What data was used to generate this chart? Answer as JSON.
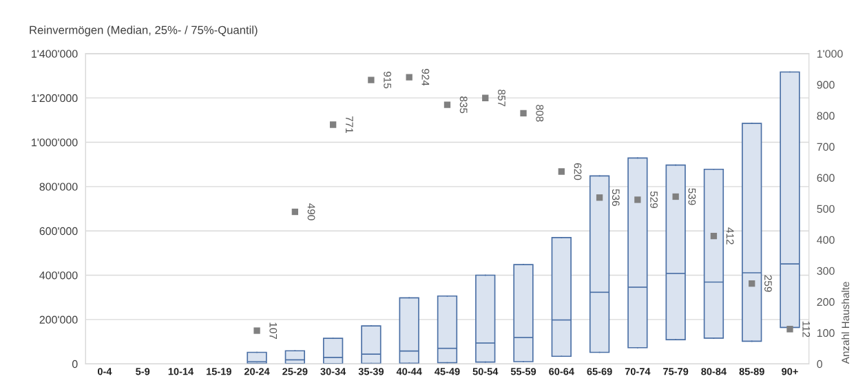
{
  "chart_data": {
    "type": "box",
    "title": "Reinvermögen (Median, 25%- / 75%-Quantil)",
    "y2label": "Anzahl Haushalte",
    "categories": [
      "0-4",
      "5-9",
      "10-14",
      "15-19",
      "20-24",
      "25-29",
      "30-34",
      "35-39",
      "40-44",
      "45-49",
      "50-54",
      "55-59",
      "60-64",
      "65-69",
      "70-74",
      "75-79",
      "80-84",
      "85-89",
      "90+"
    ],
    "color": "#dae3f0",
    "boxes": [
      null,
      null,
      null,
      null,
      {
        "low": 2000,
        "q1": 2000,
        "median": 10000,
        "q3": 52000,
        "high": 52000
      },
      {
        "low": 1000,
        "q1": 1000,
        "median": 18000,
        "q3": 59000,
        "high": 59000
      },
      {
        "low": 1000,
        "q1": 1000,
        "median": 29000,
        "q3": 115000,
        "high": 115000
      },
      {
        "low": 2000,
        "q1": 2000,
        "median": 44000,
        "q3": 171000,
        "high": 171000
      },
      {
        "low": 3000,
        "q1": 3000,
        "median": 58000,
        "q3": 298000,
        "high": 298000
      },
      {
        "low": 5000,
        "q1": 5000,
        "median": 70000,
        "q3": 306000,
        "high": 306000
      },
      {
        "low": 8000,
        "q1": 8000,
        "median": 94000,
        "q3": 400000,
        "high": 400000
      },
      {
        "low": 10000,
        "q1": 10000,
        "median": 119000,
        "q3": 448000,
        "high": 448000
      },
      {
        "low": 34000,
        "q1": 34000,
        "median": 198000,
        "q3": 570000,
        "high": 570000
      },
      {
        "low": 52000,
        "q1": 52000,
        "median": 323000,
        "q3": 848000,
        "high": 848000
      },
      {
        "low": 73000,
        "q1": 73000,
        "median": 346000,
        "q3": 929000,
        "high": 929000
      },
      {
        "low": 109000,
        "q1": 109000,
        "median": 408000,
        "q3": 897000,
        "high": 897000
      },
      {
        "low": 116000,
        "q1": 116000,
        "median": 369000,
        "q3": 878000,
        "high": 878000
      },
      {
        "low": 102000,
        "q1": 102000,
        "median": 411000,
        "q3": 1085000,
        "high": 1085000
      },
      {
        "low": 164000,
        "q1": 164000,
        "median": 451000,
        "q3": 1317000,
        "high": 1317000
      }
    ],
    "series": [
      {
        "type": "scatter",
        "axis": "y2",
        "color": "#808080",
        "marker": "square",
        "values": [
          null,
          null,
          null,
          null,
          107,
          490,
          771,
          915,
          924,
          835,
          857,
          808,
          620,
          536,
          529,
          539,
          412,
          259,
          112
        ],
        "value_labels": [
          null,
          null,
          null,
          null,
          "107",
          "490",
          "771",
          "915",
          "924",
          "835",
          "857",
          "808",
          "620",
          "536",
          "529",
          "539",
          "412",
          "259",
          "112"
        ]
      }
    ],
    "ylim": [
      0,
      1400000
    ],
    "yticks": [
      0,
      {
        "value": 200000,
        "label": "200'000"
      },
      {
        "value": 400000,
        "label": "400'000"
      },
      {
        "value": 600000,
        "label": "600'000"
      },
      {
        "value": 800000,
        "label": "800'000"
      },
      {
        "value": 1000000,
        "label": "1'000'000"
      },
      {
        "value": 1200000,
        "label": "1'200'000"
      },
      {
        "value": 1400000,
        "label": "1'400'000"
      }
    ],
    "y2lim": [
      0,
      1000
    ],
    "y2ticks": [
      0,
      100,
      200,
      300,
      400,
      500,
      600,
      700,
      800,
      900,
      {
        "value": 1000,
        "label": "1'000"
      }
    ],
    "grid": "y"
  }
}
